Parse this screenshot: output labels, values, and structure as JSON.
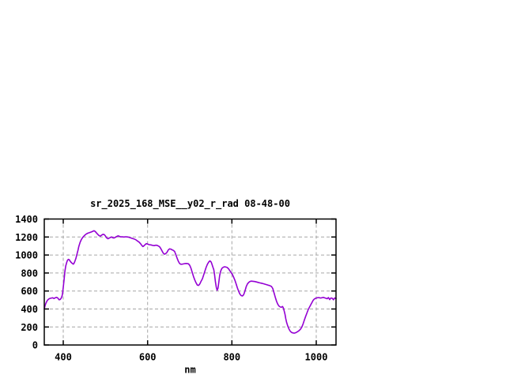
{
  "window": {
    "background": "#ffffff"
  },
  "chart_data": {
    "type": "line",
    "title": "sr_2025_168_MSE__y02_r_rad 08-48-00",
    "xlabel": "nm",
    "ylabel": "",
    "xlim": [
      355,
      1047
    ],
    "ylim": [
      0,
      1400
    ],
    "xticks": [
      400,
      600,
      800,
      1000
    ],
    "xtick_labels": [
      "400",
      "600",
      "800",
      "1000"
    ],
    "yticks": [
      0,
      200,
      400,
      600,
      800,
      1000,
      1200,
      1400
    ],
    "ytick_labels": [
      "0",
      "200",
      "400",
      "600",
      "800",
      "1000",
      "1200",
      "1400"
    ],
    "grid": true,
    "legend": "none",
    "line_color": "#9400d3",
    "grid_color": "#a6a6a6",
    "axis_color": "#000000",
    "series": [
      {
        "name": "sr_2025_168_MSE__y02_r_rad",
        "points": [
          [
            355,
            400
          ],
          [
            357,
            440
          ],
          [
            359,
            465
          ],
          [
            361,
            485
          ],
          [
            363,
            500
          ],
          [
            366,
            512
          ],
          [
            369,
            518
          ],
          [
            372,
            522
          ],
          [
            375,
            525
          ],
          [
            378,
            517
          ],
          [
            381,
            525
          ],
          [
            384,
            530
          ],
          [
            387,
            522
          ],
          [
            390,
            503
          ],
          [
            393,
            507
          ],
          [
            396,
            528
          ],
          [
            398,
            560
          ],
          [
            400,
            640
          ],
          [
            402,
            730
          ],
          [
            404,
            820
          ],
          [
            406,
            880
          ],
          [
            408,
            915
          ],
          [
            410,
            940
          ],
          [
            412,
            952
          ],
          [
            414,
            948
          ],
          [
            416,
            935
          ],
          [
            418,
            922
          ],
          [
            421,
            908
          ],
          [
            424,
            898
          ],
          [
            426,
            912
          ],
          [
            428,
            935
          ],
          [
            430,
            962
          ],
          [
            432,
            1000
          ],
          [
            435,
            1055
          ],
          [
            437,
            1096
          ],
          [
            440,
            1140
          ],
          [
            443,
            1172
          ],
          [
            446,
            1195
          ],
          [
            450,
            1216
          ],
          [
            454,
            1232
          ],
          [
            458,
            1242
          ],
          [
            462,
            1248
          ],
          [
            466,
            1255
          ],
          [
            470,
            1263
          ],
          [
            473,
            1270
          ],
          [
            476,
            1261
          ],
          [
            479,
            1245
          ],
          [
            482,
            1230
          ],
          [
            485,
            1216
          ],
          [
            488,
            1210
          ],
          [
            491,
            1221
          ],
          [
            494,
            1230
          ],
          [
            497,
            1228
          ],
          [
            500,
            1212
          ],
          [
            503,
            1190
          ],
          [
            506,
            1181
          ],
          [
            509,
            1188
          ],
          [
            512,
            1196
          ],
          [
            515,
            1200
          ],
          [
            518,
            1190
          ],
          [
            521,
            1190
          ],
          [
            524,
            1198
          ],
          [
            527,
            1206
          ],
          [
            530,
            1213
          ],
          [
            533,
            1208
          ],
          [
            536,
            1202
          ],
          [
            540,
            1203
          ],
          [
            544,
            1200
          ],
          [
            548,
            1203
          ],
          [
            552,
            1201
          ],
          [
            556,
            1197
          ],
          [
            560,
            1190
          ],
          [
            564,
            1184
          ],
          [
            568,
            1178
          ],
          [
            572,
            1170
          ],
          [
            576,
            1156
          ],
          [
            580,
            1143
          ],
          [
            584,
            1122
          ],
          [
            587,
            1103
          ],
          [
            589,
            1094
          ],
          [
            591,
            1100
          ],
          [
            594,
            1114
          ],
          [
            597,
            1126
          ],
          [
            600,
            1122
          ],
          [
            604,
            1115
          ],
          [
            608,
            1112
          ],
          [
            612,
            1107
          ],
          [
            616,
            1104
          ],
          [
            620,
            1110
          ],
          [
            624,
            1104
          ],
          [
            628,
            1094
          ],
          [
            631,
            1075
          ],
          [
            634,
            1048
          ],
          [
            637,
            1022
          ],
          [
            640,
            1009
          ],
          [
            643,
            1016
          ],
          [
            646,
            1030
          ],
          [
            649,
            1055
          ],
          [
            652,
            1068
          ],
          [
            655,
            1066
          ],
          [
            658,
            1058
          ],
          [
            661,
            1052
          ],
          [
            664,
            1040
          ],
          [
            667,
            1005
          ],
          [
            670,
            965
          ],
          [
            673,
            930
          ],
          [
            676,
            905
          ],
          [
            679,
            897
          ],
          [
            682,
            898
          ],
          [
            685,
            901
          ],
          [
            688,
            904
          ],
          [
            691,
            906
          ],
          [
            694,
            905
          ],
          [
            697,
            902
          ],
          [
            700,
            885
          ],
          [
            703,
            852
          ],
          [
            706,
            805
          ],
          [
            709,
            760
          ],
          [
            712,
            722
          ],
          [
            715,
            690
          ],
          [
            718,
            666
          ],
          [
            721,
            662
          ],
          [
            724,
            680
          ],
          [
            727,
            710
          ],
          [
            730,
            735
          ],
          [
            733,
            778
          ],
          [
            736,
            822
          ],
          [
            739,
            865
          ],
          [
            742,
            898
          ],
          [
            745,
            922
          ],
          [
            748,
            935
          ],
          [
            751,
            920
          ],
          [
            753,
            895
          ],
          [
            755,
            865
          ],
          [
            757,
            838
          ],
          [
            759,
            780
          ],
          [
            761,
            700
          ],
          [
            763,
            640
          ],
          [
            765,
            608
          ],
          [
            767,
            630
          ],
          [
            769,
            700
          ],
          [
            771,
            770
          ],
          [
            773,
            815
          ],
          [
            775,
            840
          ],
          [
            777,
            855
          ],
          [
            780,
            865
          ],
          [
            783,
            869
          ],
          [
            786,
            866
          ],
          [
            789,
            861
          ],
          [
            792,
            847
          ],
          [
            795,
            827
          ],
          [
            798,
            806
          ],
          [
            801,
            786
          ],
          [
            804,
            756
          ],
          [
            807,
            722
          ],
          [
            810,
            681
          ],
          [
            813,
            636
          ],
          [
            816,
            598
          ],
          [
            819,
            567
          ],
          [
            822,
            549
          ],
          [
            825,
            545
          ],
          [
            828,
            559
          ],
          [
            831,
            598
          ],
          [
            834,
            648
          ],
          [
            837,
            679
          ],
          [
            840,
            696
          ],
          [
            843,
            706
          ],
          [
            846,
            710
          ],
          [
            850,
            708
          ],
          [
            854,
            705
          ],
          [
            858,
            701
          ],
          [
            862,
            696
          ],
          [
            866,
            690
          ],
          [
            870,
            687
          ],
          [
            874,
            682
          ],
          [
            878,
            676
          ],
          [
            882,
            671
          ],
          [
            886,
            665
          ],
          [
            890,
            660
          ],
          [
            894,
            650
          ],
          [
            897,
            628
          ],
          [
            900,
            580
          ],
          [
            903,
            530
          ],
          [
            906,
            485
          ],
          [
            909,
            452
          ],
          [
            912,
            432
          ],
          [
            915,
            422
          ],
          [
            918,
            420
          ],
          [
            920,
            428
          ],
          [
            922,
            415
          ],
          [
            924,
            380
          ],
          [
            926,
            340
          ],
          [
            928,
            290
          ],
          [
            930,
            248
          ],
          [
            933,
            205
          ],
          [
            936,
            172
          ],
          [
            939,
            150
          ],
          [
            942,
            139
          ],
          [
            945,
            134
          ],
          [
            948,
            132
          ],
          [
            951,
            136
          ],
          [
            954,
            143
          ],
          [
            957,
            152
          ],
          [
            960,
            162
          ],
          [
            963,
            177
          ],
          [
            966,
            200
          ],
          [
            969,
            235
          ],
          [
            972,
            278
          ],
          [
            975,
            318
          ],
          [
            978,
            355
          ],
          [
            981,
            392
          ],
          [
            984,
            420
          ],
          [
            987,
            446
          ],
          [
            990,
            472
          ],
          [
            993,
            498
          ],
          [
            996,
            512
          ],
          [
            999,
            519
          ],
          [
            1002,
            524
          ],
          [
            1005,
            527
          ],
          [
            1008,
            525
          ],
          [
            1011,
            522
          ],
          [
            1014,
            526
          ],
          [
            1017,
            529
          ],
          [
            1020,
            524
          ],
          [
            1023,
            519
          ],
          [
            1026,
            514
          ],
          [
            1029,
            527
          ],
          [
            1032,
            504
          ],
          [
            1035,
            523
          ],
          [
            1038,
            519
          ],
          [
            1041,
            503
          ],
          [
            1044,
            524
          ],
          [
            1047,
            516
          ]
        ]
      }
    ]
  }
}
